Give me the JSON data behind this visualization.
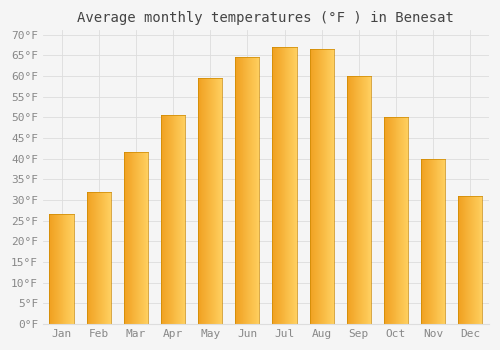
{
  "title": "Average monthly temperatures (°F ) in Benesat",
  "months": [
    "Jan",
    "Feb",
    "Mar",
    "Apr",
    "May",
    "Jun",
    "Jul",
    "Aug",
    "Sep",
    "Oct",
    "Nov",
    "Dec"
  ],
  "values": [
    26.5,
    32.0,
    41.5,
    50.5,
    59.5,
    64.5,
    67.0,
    66.5,
    60.0,
    50.0,
    40.0,
    31.0
  ],
  "bar_color_bottom": "#F5A623",
  "bar_color_top": "#FFD966",
  "bar_color_right": "#E8960F",
  "background_color": "#F5F5F5",
  "grid_color": "#DDDDDD",
  "text_color": "#888888",
  "title_color": "#444444",
  "ylim": [
    0,
    71
  ],
  "yticks": [
    0,
    5,
    10,
    15,
    20,
    25,
    30,
    35,
    40,
    45,
    50,
    55,
    60,
    65,
    70
  ],
  "title_fontsize": 10,
  "tick_fontsize": 8
}
